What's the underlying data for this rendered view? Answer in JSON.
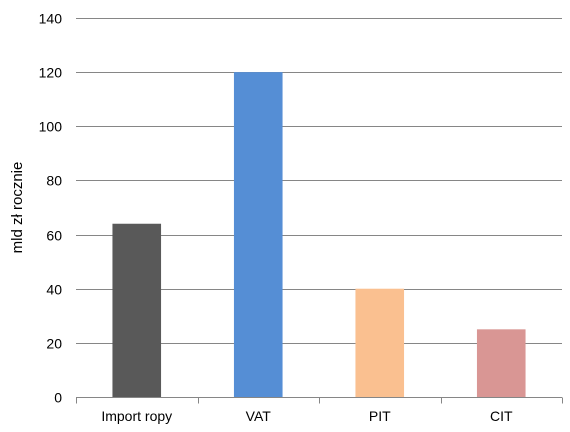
{
  "chart_data": {
    "type": "bar",
    "title": "",
    "xlabel": "",
    "ylabel": "mld zł rocznie",
    "categories": [
      "Import ropy",
      "VAT",
      "PIT",
      "CIT"
    ],
    "values": [
      64,
      120,
      40,
      25
    ],
    "colors": [
      "#595959",
      "#558ed5",
      "#fac090",
      "#d99694"
    ],
    "ylim": [
      0,
      140
    ],
    "yticks": [
      0,
      20,
      40,
      60,
      80,
      100,
      120,
      140
    ],
    "grid": true,
    "legend": "none"
  }
}
